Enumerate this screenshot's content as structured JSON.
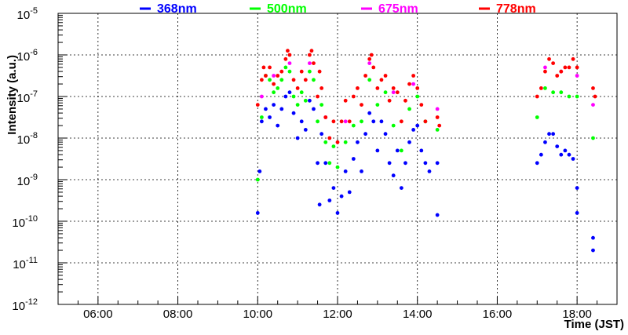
{
  "chart_data": {
    "type": "scatter",
    "xlabel": "Time (JST)",
    "ylabel": "Intensity (a.u.)",
    "x_unit": "hour",
    "xlim": [
      5.0,
      19.0
    ],
    "ylim_log10": [
      -12,
      -5
    ],
    "y_scale": "log",
    "grid": true,
    "legend_position": "top",
    "x_ticks": [
      {
        "value": 6,
        "label": "06:00"
      },
      {
        "value": 8,
        "label": "08:00"
      },
      {
        "value": 10,
        "label": "10:00"
      },
      {
        "value": 12,
        "label": "12:00"
      },
      {
        "value": 14,
        "label": "14:00"
      },
      {
        "value": 16,
        "label": "16:00"
      },
      {
        "value": 18,
        "label": "18:00"
      }
    ],
    "y_ticks": [
      {
        "exp": -12,
        "base": "10",
        "sup": "-12"
      },
      {
        "exp": -11,
        "base": "10",
        "sup": "-11"
      },
      {
        "exp": -10,
        "base": "10",
        "sup": "-10"
      },
      {
        "exp": -9,
        "base": "10",
        "sup": "-9"
      },
      {
        "exp": -8,
        "base": "10",
        "sup": "-8"
      },
      {
        "exp": -7,
        "base": "10",
        "sup": "-7"
      },
      {
        "exp": -6,
        "base": "10",
        "sup": "-6"
      },
      {
        "exp": -5,
        "base": "10",
        "sup": "-5"
      }
    ],
    "series": [
      {
        "name": "368nm",
        "color": "#0000ff",
        "points": [
          [
            10.0,
            -9.8
          ],
          [
            10.05,
            -8.8
          ],
          [
            10.1,
            -7.6
          ],
          [
            10.2,
            -7.3
          ],
          [
            10.3,
            -7.5
          ],
          [
            10.4,
            -7.2
          ],
          [
            10.5,
            -7.7
          ],
          [
            10.6,
            -7.3
          ],
          [
            10.7,
            -7.0
          ],
          [
            10.8,
            -6.9
          ],
          [
            10.9,
            -7.4
          ],
          [
            11.0,
            -8.0
          ],
          [
            11.1,
            -7.6
          ],
          [
            11.2,
            -7.8
          ],
          [
            11.3,
            -7.1
          ],
          [
            11.4,
            -7.3
          ],
          [
            11.5,
            -8.6
          ],
          [
            11.55,
            -9.6
          ],
          [
            11.6,
            -7.9
          ],
          [
            11.7,
            -8.6
          ],
          [
            11.8,
            -9.5
          ],
          [
            11.9,
            -9.2
          ],
          [
            12.0,
            -9.8
          ],
          [
            12.1,
            -9.4
          ],
          [
            12.2,
            -8.8
          ],
          [
            12.3,
            -9.3
          ],
          [
            12.4,
            -8.5
          ],
          [
            12.5,
            -8.1
          ],
          [
            12.6,
            -8.8
          ],
          [
            12.7,
            -7.9
          ],
          [
            12.8,
            -7.4
          ],
          [
            12.9,
            -7.6
          ],
          [
            13.0,
            -8.3
          ],
          [
            13.1,
            -7.6
          ],
          [
            13.2,
            -7.9
          ],
          [
            13.3,
            -8.6
          ],
          [
            13.4,
            -8.9
          ],
          [
            13.5,
            -8.3
          ],
          [
            13.6,
            -9.2
          ],
          [
            13.7,
            -8.6
          ],
          [
            13.8,
            -8.1
          ],
          [
            13.9,
            -7.8
          ],
          [
            14.0,
            -7.7
          ],
          [
            14.1,
            -8.3
          ],
          [
            14.2,
            -8.6
          ],
          [
            14.3,
            -8.8
          ],
          [
            14.5,
            -8.6
          ],
          [
            14.5,
            -9.85
          ],
          [
            17.0,
            -8.6
          ],
          [
            17.1,
            -8.4
          ],
          [
            17.2,
            -8.1
          ],
          [
            17.3,
            -7.9
          ],
          [
            17.4,
            -7.9
          ],
          [
            17.5,
            -8.2
          ],
          [
            17.6,
            -8.4
          ],
          [
            17.7,
            -8.3
          ],
          [
            17.8,
            -8.4
          ],
          [
            17.9,
            -8.5
          ],
          [
            18.0,
            -9.2
          ],
          [
            18.0,
            -9.8
          ],
          [
            18.4,
            -10.4
          ],
          [
            18.4,
            -10.7
          ]
        ]
      },
      {
        "name": "500nm",
        "color": "#00ff00",
        "points": [
          [
            10.0,
            -9.0
          ],
          [
            10.1,
            -7.5
          ],
          [
            10.2,
            -6.5
          ],
          [
            10.3,
            -6.6
          ],
          [
            10.4,
            -6.9
          ],
          [
            10.5,
            -6.8
          ],
          [
            10.6,
            -6.6
          ],
          [
            10.7,
            -6.3
          ],
          [
            10.8,
            -6.4
          ],
          [
            10.9,
            -7.0
          ],
          [
            11.0,
            -7.2
          ],
          [
            11.1,
            -6.9
          ],
          [
            11.2,
            -7.1
          ],
          [
            11.3,
            -6.4
          ],
          [
            11.4,
            -6.6
          ],
          [
            11.5,
            -7.6
          ],
          [
            11.6,
            -7.2
          ],
          [
            11.7,
            -8.1
          ],
          [
            11.8,
            -8.6
          ],
          [
            11.9,
            -8.2
          ],
          [
            12.0,
            -8.7
          ],
          [
            12.2,
            -8.1
          ],
          [
            12.4,
            -7.7
          ],
          [
            12.6,
            -7.6
          ],
          [
            12.8,
            -6.6
          ],
          [
            13.0,
            -7.2
          ],
          [
            13.2,
            -6.9
          ],
          [
            13.4,
            -7.7
          ],
          [
            13.6,
            -8.3
          ],
          [
            13.8,
            -7.3
          ],
          [
            14.0,
            -7.0
          ],
          [
            14.2,
            -7.6
          ],
          [
            14.5,
            -7.8
          ],
          [
            17.0,
            -7.5
          ],
          [
            17.2,
            -6.8
          ],
          [
            17.4,
            -6.9
          ],
          [
            17.6,
            -6.9
          ],
          [
            17.8,
            -7.0
          ],
          [
            18.0,
            -7.0
          ],
          [
            18.4,
            -8.0
          ]
        ]
      },
      {
        "name": "675nm",
        "color": "#ff00ff",
        "points": [
          [
            10.1,
            -7.0
          ],
          [
            10.4,
            -6.5
          ],
          [
            10.8,
            -6.2
          ],
          [
            11.3,
            -6.2
          ],
          [
            11.7,
            -7.5
          ],
          [
            12.2,
            -7.6
          ],
          [
            12.8,
            -6.2
          ],
          [
            13.4,
            -6.9
          ],
          [
            13.9,
            -6.7
          ],
          [
            14.5,
            -7.3
          ],
          [
            17.2,
            -6.3
          ],
          [
            17.6,
            -6.4
          ],
          [
            18.0,
            -6.5
          ],
          [
            18.4,
            -7.2
          ]
        ]
      },
      {
        "name": "778nm",
        "color": "#ff0000",
        "points": [
          [
            10.0,
            -7.2
          ],
          [
            10.1,
            -6.6
          ],
          [
            10.15,
            -6.3
          ],
          [
            10.2,
            -6.5
          ],
          [
            10.3,
            -6.3
          ],
          [
            10.4,
            -6.7
          ],
          [
            10.5,
            -6.5
          ],
          [
            10.6,
            -6.4
          ],
          [
            10.7,
            -6.1
          ],
          [
            10.75,
            -5.9
          ],
          [
            10.8,
            -6.0
          ],
          [
            10.9,
            -6.6
          ],
          [
            11.0,
            -6.8
          ],
          [
            11.1,
            -6.4
          ],
          [
            11.2,
            -6.6
          ],
          [
            11.3,
            -6.0
          ],
          [
            11.35,
            -5.9
          ],
          [
            11.4,
            -6.2
          ],
          [
            11.5,
            -7.0
          ],
          [
            11.55,
            -6.4
          ],
          [
            11.6,
            -6.8
          ],
          [
            11.7,
            -7.5
          ],
          [
            11.8,
            -8.0
          ],
          [
            11.9,
            -7.6
          ],
          [
            12.0,
            -8.1
          ],
          [
            12.1,
            -7.6
          ],
          [
            12.2,
            -7.1
          ],
          [
            12.3,
            -7.6
          ],
          [
            12.4,
            -7.0
          ],
          [
            12.5,
            -6.8
          ],
          [
            12.6,
            -7.2
          ],
          [
            12.7,
            -6.5
          ],
          [
            12.8,
            -6.1
          ],
          [
            12.85,
            -6.0
          ],
          [
            12.9,
            -6.3
          ],
          [
            13.0,
            -6.8
          ],
          [
            13.1,
            -6.6
          ],
          [
            13.2,
            -6.5
          ],
          [
            13.3,
            -7.1
          ],
          [
            13.4,
            -6.8
          ],
          [
            13.5,
            -6.9
          ],
          [
            13.6,
            -7.6
          ],
          [
            13.7,
            -7.1
          ],
          [
            13.8,
            -6.7
          ],
          [
            13.9,
            -6.5
          ],
          [
            14.0,
            -6.8
          ],
          [
            14.1,
            -7.2
          ],
          [
            14.2,
            -7.6
          ],
          [
            14.5,
            -7.5
          ],
          [
            14.55,
            -7.7
          ],
          [
            17.0,
            -7.0
          ],
          [
            17.1,
            -6.8
          ],
          [
            17.2,
            -6.4
          ],
          [
            17.3,
            -6.1
          ],
          [
            17.4,
            -6.2
          ],
          [
            17.5,
            -6.5
          ],
          [
            17.6,
            -6.4
          ],
          [
            17.7,
            -6.3
          ],
          [
            17.8,
            -6.3
          ],
          [
            17.9,
            -6.1
          ],
          [
            18.0,
            -6.3
          ],
          [
            18.4,
            -6.8
          ],
          [
            18.45,
            -7.0
          ]
        ]
      }
    ]
  }
}
